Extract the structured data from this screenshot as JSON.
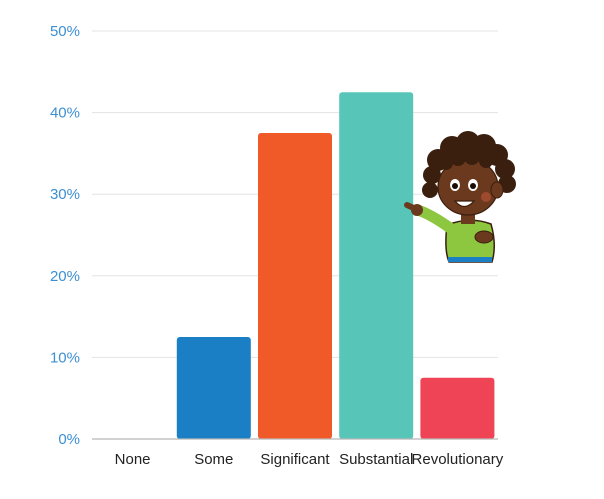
{
  "chart_data": {
    "type": "bar",
    "title": "",
    "xlabel": "",
    "ylabel": "",
    "categories": [
      "None",
      "Some",
      "Significant",
      "Substantial",
      "Revolutionary"
    ],
    "values": [
      0,
      12.5,
      37.5,
      42.5,
      7.5
    ],
    "colors": [
      "#1a7fc4",
      "#1a7fc4",
      "#f05a28",
      "#57c6b9",
      "#ef4455"
    ],
    "ylim": [
      0,
      50
    ],
    "yticks": [
      "0%",
      "10%",
      "20%",
      "30%",
      "40%",
      "50%"
    ],
    "ytick_values": [
      0,
      10,
      20,
      30,
      40,
      50
    ],
    "grid": true,
    "legend": "none"
  },
  "illustration": {
    "icon": "cartoon-boy-pointing-icon",
    "skin_color": "#6b3a1e",
    "hair_color": "#3a1e0e",
    "shirt_color": "#8dc63f"
  }
}
